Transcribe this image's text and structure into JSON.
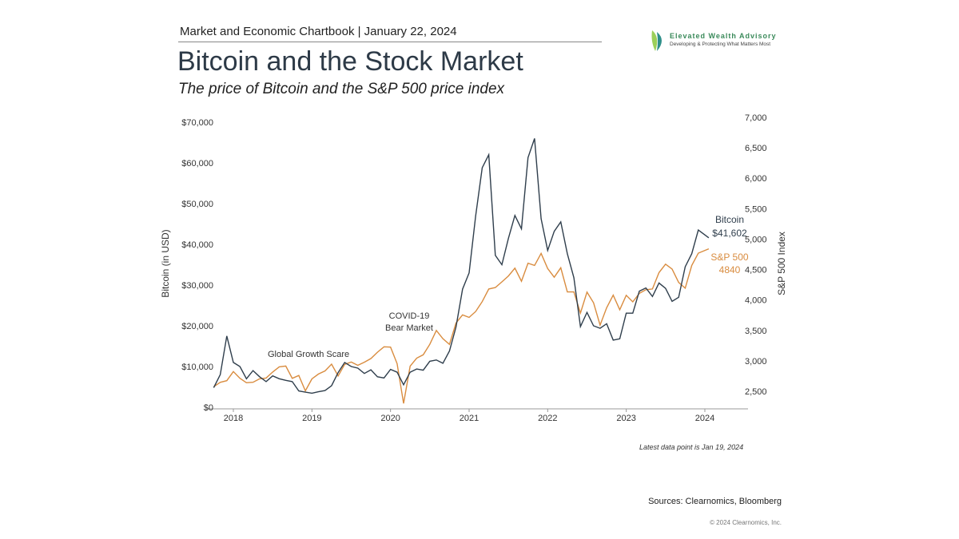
{
  "header": {
    "chartbook": "Market and Economic Chartbook | January 22, 2024",
    "logo_name": "Elevated Wealth Advisory",
    "logo_tagline": "Developing & Protecting What Matters Most"
  },
  "footer": {
    "note": "Latest data point is Jan 19, 2024",
    "sources": "Sources: Clearnomics, Bloomberg",
    "copyright": "© 2024 Clearnomics, Inc."
  },
  "chart_data": {
    "type": "line",
    "title": "Bitcoin and the Stock Market",
    "subtitle": "The price of Bitcoin and the S&P 500 price index",
    "ylabel_left": "Bitcoin (in USD)",
    "ylabel_right": "S&P 500 Index",
    "ylim_left": [
      0,
      70000
    ],
    "ylim_right": [
      2237,
      7000
    ],
    "yticks_left": [
      "$0",
      "$10,000",
      "$20,000",
      "$30,000",
      "$40,000",
      "$50,000",
      "$60,000",
      "$70,000"
    ],
    "yticks_right": [
      "2,500",
      "3,000",
      "3,500",
      "4,000",
      "4,500",
      "5,000",
      "5,500",
      "6,000",
      "6,500",
      "7,000"
    ],
    "xticks": [
      "2018",
      "2019",
      "2020",
      "2021",
      "2022",
      "2023",
      "2024"
    ],
    "colors": {
      "bitcoin": "#2f3e4c",
      "sp500": "#d98c3f"
    },
    "annotations": [
      "Global Growth Scare",
      "COVID-19",
      "Bear Market"
    ],
    "end_labels": {
      "bitcoin_name": "Bitcoin",
      "bitcoin_value": "$41,602",
      "sp_name": "S&P 500",
      "sp_value": "4840"
    },
    "x": [
      "2017-10",
      "2017-11",
      "2017-12",
      "2018-01",
      "2018-02",
      "2018-03",
      "2018-04",
      "2018-05",
      "2018-06",
      "2018-07",
      "2018-08",
      "2018-09",
      "2018-10",
      "2018-11",
      "2018-12",
      "2019-01",
      "2019-02",
      "2019-03",
      "2019-04",
      "2019-05",
      "2019-06",
      "2019-07",
      "2019-08",
      "2019-09",
      "2019-10",
      "2019-11",
      "2019-12",
      "2020-01",
      "2020-02",
      "2020-03",
      "2020-04",
      "2020-05",
      "2020-06",
      "2020-07",
      "2020-08",
      "2020-09",
      "2020-10",
      "2020-11",
      "2020-12",
      "2021-01",
      "2021-02",
      "2021-03",
      "2021-04",
      "2021-05",
      "2021-06",
      "2021-07",
      "2021-08",
      "2021-09",
      "2021-10",
      "2021-11",
      "2021-12",
      "2022-01",
      "2022-02",
      "2022-03",
      "2022-04",
      "2022-05",
      "2022-06",
      "2022-07",
      "2022-08",
      "2022-09",
      "2022-10",
      "2022-11",
      "2022-12",
      "2023-01",
      "2023-02",
      "2023-03",
      "2023-04",
      "2023-05",
      "2023-06",
      "2023-07",
      "2023-08",
      "2023-09",
      "2023-10",
      "2023-11",
      "2023-12",
      "2024-01"
    ],
    "series": [
      {
        "name": "Bitcoin",
        "values": [
          4800,
          8000,
          17500,
          11000,
          10000,
          7000,
          9000,
          7500,
          6300,
          7700,
          7000,
          6600,
          6300,
          4000,
          3700,
          3450,
          3800,
          4100,
          5300,
          8500,
          11000,
          10000,
          9600,
          8300,
          9200,
          7500,
          7200,
          9300,
          8600,
          5500,
          8600,
          9400,
          9100,
          11300,
          11600,
          10800,
          13800,
          19700,
          29000,
          33000,
          47000,
          58800,
          62000,
          37300,
          35000,
          41500,
          47100,
          43800,
          61300,
          66000,
          46300,
          38500,
          43200,
          45500,
          37700,
          31800,
          19800,
          23300,
          20000,
          19400,
          20500,
          16500,
          16800,
          23100,
          23100,
          28500,
          29300,
          27200,
          30500,
          29200,
          26000,
          27000,
          34500,
          37700,
          43500,
          41602
        ]
      },
      {
        "name": "S&P 500",
        "values": [
          2575,
          2647,
          2674,
          2824,
          2714,
          2641,
          2648,
          2705,
          2718,
          2816,
          2902,
          2914,
          2712,
          2760,
          2507,
          2704,
          2784,
          2834,
          2946,
          2752,
          2942,
          2980,
          2926,
          2977,
          3038,
          3141,
          3231,
          3226,
          2954,
          2300,
          2912,
          3044,
          3100,
          3271,
          3500,
          3363,
          3270,
          3622,
          3756,
          3714,
          3811,
          3973,
          4181,
          4204,
          4298,
          4395,
          4523,
          4308,
          4605,
          4567,
          4766,
          4516,
          4374,
          4530,
          4132,
          4132,
          3785,
          4130,
          3955,
          3586,
          3872,
          4080,
          3840,
          4077,
          3970,
          4109,
          4169,
          4180,
          4450,
          4589,
          4508,
          4288,
          4194,
          4568,
          4770,
          4840
        ]
      }
    ]
  }
}
